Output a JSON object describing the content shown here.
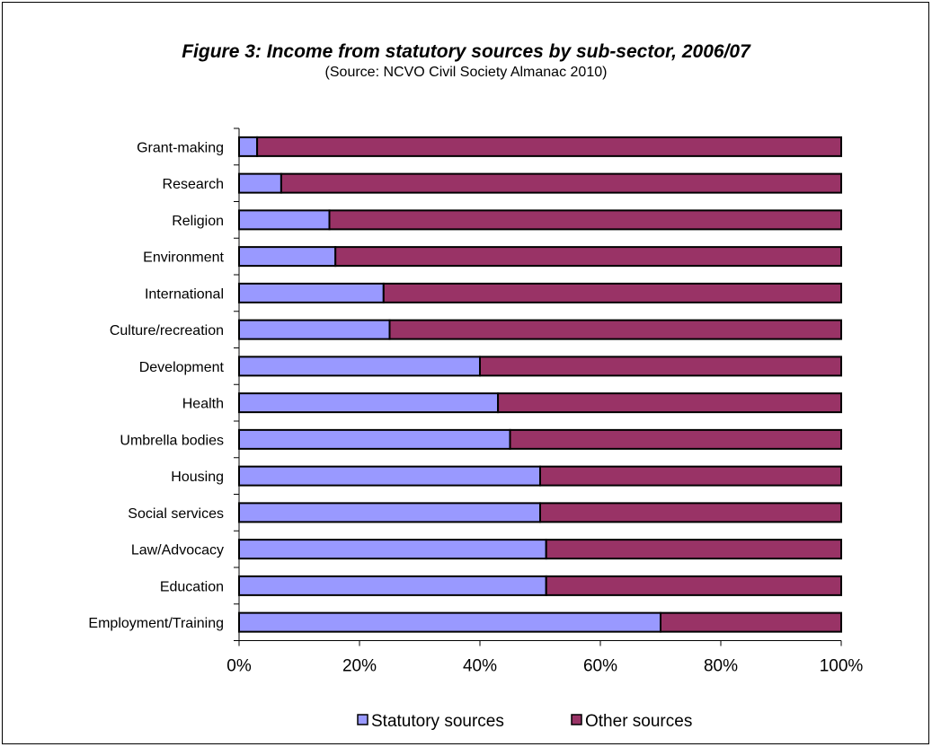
{
  "chart_data": {
    "type": "bar",
    "orientation": "horizontal",
    "stacked": "percent",
    "title": "Figure 3: Income from statutory sources by sub-sector, 2006/07",
    "subtitle": "(Source: NCVO Civil Society Almanac 2010)",
    "categories": [
      "Grant-making",
      "Research",
      "Religion",
      "Environment",
      "International",
      "Culture/recreation",
      "Development",
      "Health",
      "Umbrella bodies",
      "Housing",
      "Social services",
      "Law/Advocacy",
      "Education",
      "Employment/Training"
    ],
    "series": [
      {
        "name": "Statutory sources",
        "color": "#9999ff",
        "values": [
          3,
          7,
          15,
          16,
          24,
          25,
          40,
          43,
          45,
          50,
          50,
          51,
          51,
          70
        ]
      },
      {
        "name": "Other sources",
        "color": "#993366",
        "values": [
          97,
          93,
          85,
          84,
          76,
          75,
          60,
          57,
          55,
          50,
          50,
          49,
          49,
          30
        ]
      }
    ],
    "x_ticks": [
      "0%",
      "20%",
      "40%",
      "60%",
      "80%",
      "100%"
    ],
    "xlim": [
      0,
      100
    ],
    "grid": false,
    "legend_position": "bottom"
  }
}
